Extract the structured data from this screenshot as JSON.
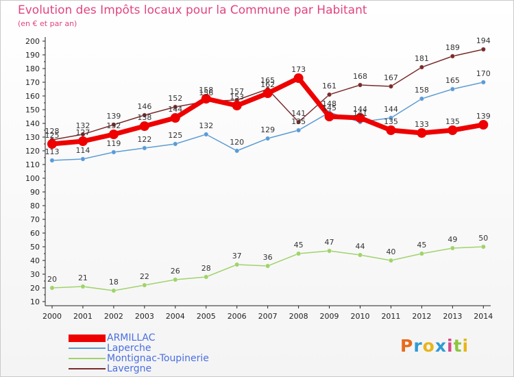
{
  "header": {
    "title": "Evolution des Impôts locaux pour la Commune par Habitant",
    "subtitle": "(en € et par an)"
  },
  "logo": {
    "text": "Proxiti",
    "colors": [
      "#e86a1a",
      "#2e9bd6",
      "#e8b51a",
      "#2e9bd6",
      "#d64a8a",
      "#8cc63f",
      "#e8b51a"
    ]
  },
  "chart_data": {
    "type": "line",
    "title": "Evolution des Impôts locaux pour la Commune par Habitant",
    "subtitle": "(en € et par an)",
    "xlabel": "",
    "ylabel": "",
    "categories": [
      "2000",
      "2001",
      "2002",
      "2003",
      "2004",
      "2005",
      "2006",
      "2007",
      "2008",
      "2009",
      "2010",
      "2011",
      "2012",
      "2013",
      "2014"
    ],
    "ylim": [
      10,
      200
    ],
    "ytick_step": 10,
    "grid": false,
    "legend_position": "bottom-left",
    "series": [
      {
        "name": "ARMILLAC",
        "color": "#ee0000",
        "emphasis": true,
        "values": [
          125,
          127,
          132,
          138,
          144,
          158,
          153,
          162,
          173,
          145,
          144,
          135,
          133,
          135,
          139
        ]
      },
      {
        "name": "Laperche",
        "color": "#5b9bd5",
        "emphasis": false,
        "values": [
          113,
          114,
          119,
          122,
          125,
          132,
          120,
          129,
          135,
          148,
          141,
          144,
          158,
          165,
          170
        ]
      },
      {
        "name": "Montignac-Toupinerie",
        "color": "#9fd36b",
        "emphasis": false,
        "values": [
          20,
          21,
          18,
          22,
          26,
          28,
          37,
          36,
          45,
          47,
          44,
          40,
          45,
          49,
          50
        ]
      },
      {
        "name": "Lavergne",
        "color": "#7a2a2a",
        "emphasis": false,
        "values": [
          128,
          132,
          139,
          146,
          152,
          156,
          157,
          165,
          141,
          161,
          168,
          167,
          181,
          189,
          194
        ]
      }
    ]
  }
}
